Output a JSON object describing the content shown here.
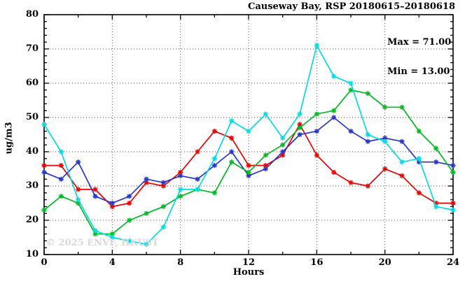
{
  "chart_data": {
    "type": "line",
    "title": "Causeway Bay, RSP 20180615–20180618",
    "annotation_lines": [
      "Max = 71.00",
      "Min = 13.00"
    ],
    "xlabel": "Hours",
    "ylabel": "ug/m3",
    "watermark": "© 2025 ENVF, HKUST",
    "xlim": [
      0,
      24
    ],
    "ylim": [
      10,
      80
    ],
    "x_major_ticks": [
      0,
      4,
      8,
      12,
      16,
      20,
      24
    ],
    "x_minor_step": 2,
    "y_major_ticks": [
      10,
      20,
      30,
      40,
      50,
      60,
      70,
      80
    ],
    "y_minor_step": 2,
    "grid": true,
    "legend": "none",
    "x": [
      0,
      1,
      2,
      3,
      4,
      5,
      6,
      7,
      8,
      9,
      10,
      11,
      12,
      13,
      14,
      15,
      16,
      17,
      18,
      19,
      20,
      21,
      22,
      23,
      24
    ],
    "series": [
      {
        "name": "series-red",
        "color": "#ee0000",
        "values": [
          36,
          36,
          29,
          29,
          24,
          25,
          31,
          30,
          34,
          40,
          46,
          44,
          36,
          36,
          39,
          48,
          39,
          34,
          31,
          30,
          35,
          33,
          28,
          25,
          25
        ]
      },
      {
        "name": "series-blue",
        "color": "#2635cc",
        "values": [
          34,
          32,
          37,
          27,
          25,
          27,
          32,
          31,
          33,
          32,
          36,
          40,
          33,
          35,
          40,
          45,
          46,
          50,
          46,
          43,
          44,
          43,
          37,
          37,
          36
        ]
      },
      {
        "name": "series-green",
        "color": "#00bb22",
        "values": [
          23,
          27,
          25,
          16,
          16,
          20,
          22,
          24,
          27,
          29,
          28,
          37,
          34,
          39,
          42,
          47,
          51,
          52,
          58,
          57,
          53,
          53,
          46,
          41,
          34
        ]
      },
      {
        "name": "series-cyan",
        "color": "#00dde4",
        "values": [
          48,
          40,
          26,
          17,
          15,
          14,
          13,
          18,
          29,
          29,
          38,
          49,
          46,
          51,
          44,
          51,
          71,
          62,
          60,
          45,
          43,
          37,
          38,
          24,
          23
        ]
      }
    ]
  }
}
